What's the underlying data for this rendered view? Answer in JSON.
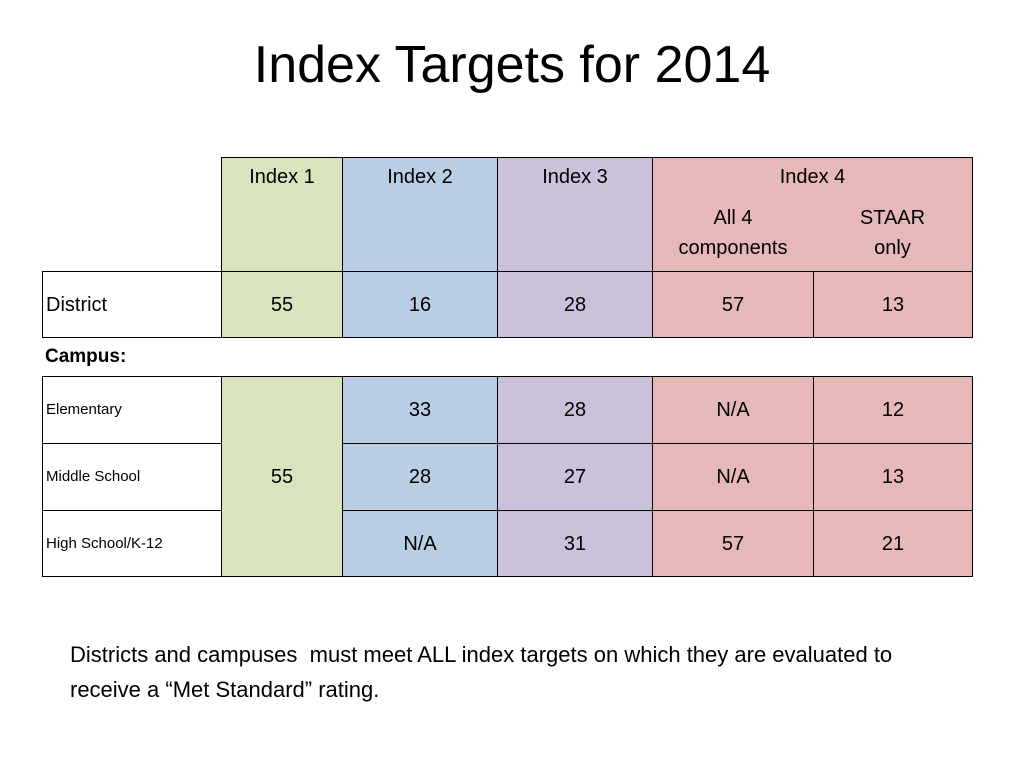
{
  "title": "Index Targets for 2014",
  "table": {
    "headers": {
      "index1": "Index 1",
      "index2": "Index 2",
      "index3": "Index 3",
      "index4": "Index 4",
      "index4_sub1": "All 4\ncomponents",
      "index4_sub2": "STAAR\nonly"
    },
    "district": {
      "label": "District",
      "index1": "55",
      "index2": "16",
      "index3": "28",
      "index4_all": "57",
      "index4_staar": "13"
    },
    "campus_label": "Campus:",
    "campus_index1": "55",
    "campus_rows": [
      {
        "label": "Elementary",
        "index2": "33",
        "index3": "28",
        "index4_all": "N/A",
        "index4_staar": "12"
      },
      {
        "label": "Middle School",
        "index2": "28",
        "index3": "27",
        "index4_all": "N/A",
        "index4_staar": "13"
      },
      {
        "label": "High School/K-12",
        "index2": "N/A",
        "index3": "31",
        "index4_all": "57",
        "index4_staar": "21"
      }
    ]
  },
  "note": "Districts and campuses  must meet ALL index targets on which they are evaluated to receive a “Met Standard” rating.",
  "colors": {
    "index1": "#d7e4bd",
    "index2": "#b9cde5",
    "index3": "#ccc1da",
    "index4": "#e6b9b8"
  }
}
